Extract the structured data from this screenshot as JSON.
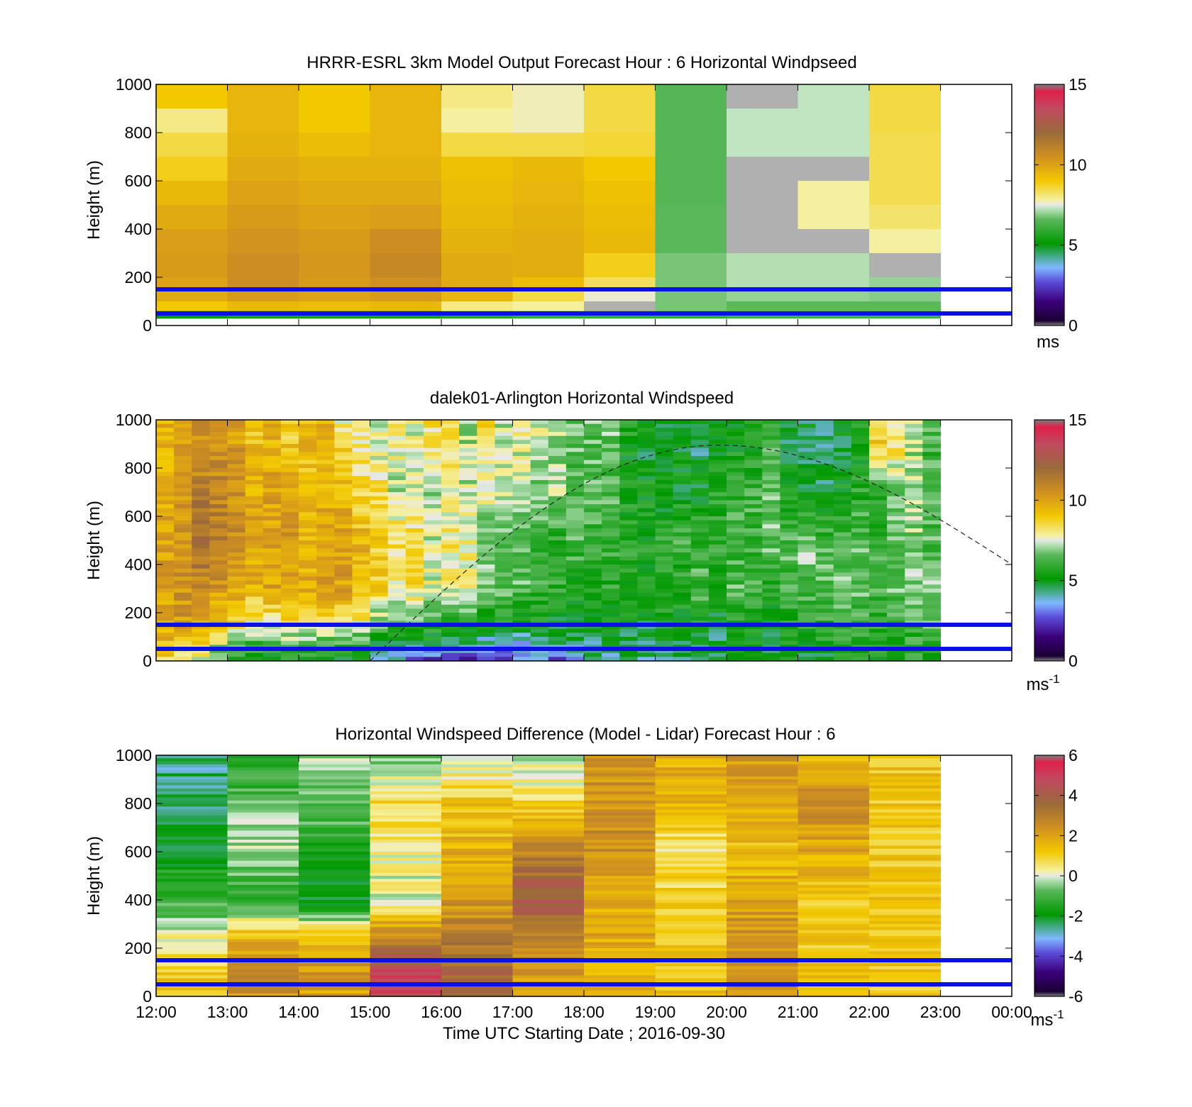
{
  "chart_data": [
    {
      "type": "heatmap",
      "title": "HRRR-ESRL 3km Model Output   Forecast Hour : 6 Horizontal Windpseed",
      "ylabel": "Height (m)",
      "xlabel": "",
      "ylim": [
        0,
        1000
      ],
      "yticks": [
        0,
        200,
        400,
        600,
        800,
        1000
      ],
      "xlim": [
        12,
        24
      ],
      "x_tick_labels": [],
      "colorbar": {
        "range": [
          0,
          15
        ],
        "ticks": [
          0,
          5,
          10,
          15
        ],
        "tick_labels": [
          "0",
          "5",
          "10",
          "15"
        ],
        "unit_label": "ms",
        "unit_superscript": "",
        "stops": [
          [
            "#7f7f7f",
            0.0
          ],
          [
            "#1a0033",
            0.02
          ],
          [
            "#3a007a",
            0.1
          ],
          [
            "#5b4bd8",
            0.18
          ],
          [
            "#7fb8ff",
            0.24
          ],
          [
            "#009900",
            0.34
          ],
          [
            "#5ab85a",
            0.44
          ],
          [
            "#c8e8c8",
            0.49
          ],
          [
            "#e8e8e8",
            0.5
          ],
          [
            "#f5f0a0",
            0.52
          ],
          [
            "#f2c800",
            0.6
          ],
          [
            "#d09020",
            0.7
          ],
          [
            "#9a6a3a",
            0.8
          ],
          [
            "#c04a60",
            0.9
          ],
          [
            "#e0204a",
            0.97
          ],
          [
            "#7f7f7f",
            1.0
          ]
        ]
      },
      "blue_lines_m": [
        150,
        50
      ],
      "layers": [
        {
          "top": 1000,
          "values": [
            9.0,
            9.5,
            9.0,
            9.5,
            8.0,
            7.7,
            8.5,
            6.5,
            "nan",
            7.3,
            8.5
          ]
        },
        {
          "top": 900,
          "values": [
            8.0,
            9.5,
            9.0,
            9.5,
            7.8,
            7.7,
            8.5,
            6.5,
            7.3,
            7.3,
            8.5
          ]
        },
        {
          "top": 800,
          "values": [
            8.5,
            9.6,
            9.3,
            9.5,
            8.5,
            8.5,
            8.6,
            6.5,
            7.3,
            7.3,
            8.4
          ]
        },
        {
          "top": 700,
          "values": [
            8.8,
            9.8,
            9.6,
            9.6,
            9.2,
            9.4,
            9.0,
            6.5,
            "nan",
            "nan",
            8.4
          ]
        },
        {
          "top": 600,
          "values": [
            9.4,
            10.0,
            9.8,
            9.8,
            9.3,
            9.5,
            9.2,
            6.5,
            "nan",
            7.8,
            8.4
          ]
        },
        {
          "top": 500,
          "values": [
            9.8,
            10.2,
            10.0,
            10.1,
            9.4,
            9.6,
            9.3,
            6.6,
            "nan",
            7.8,
            8.2
          ]
        },
        {
          "top": 400,
          "values": [
            10.1,
            10.4,
            10.2,
            10.6,
            9.6,
            9.7,
            9.4,
            6.6,
            "nan",
            "nan",
            7.8
          ]
        },
        {
          "top": 300,
          "values": [
            10.2,
            10.6,
            10.3,
            10.8,
            9.8,
            9.7,
            8.8,
            6.8,
            7.2,
            7.2,
            "nan"
          ]
        },
        {
          "top": 200,
          "values": [
            10.0,
            10.6,
            10.2,
            10.5,
            9.8,
            9.3,
            8.3,
            6.8,
            7.2,
            7.2,
            7.0
          ]
        },
        {
          "top": 150,
          "values": [
            9.8,
            10.2,
            10.0,
            10.2,
            9.5,
            8.5,
            7.6,
            6.8,
            7.0,
            7.0,
            6.9
          ]
        },
        {
          "top": 100,
          "values": [
            9.0,
            9.4,
            9.3,
            9.4,
            8.0,
            7.8,
            "nan",
            6.8,
            6.6,
            6.6,
            6.6
          ]
        },
        {
          "top": 60,
          "values": [
            5.0,
            5.5,
            5.5,
            5.5,
            5.8,
            6.0,
            6.0,
            6.0,
            6.2,
            6.2,
            6.2
          ]
        }
      ]
    },
    {
      "type": "heatmap",
      "title": "dalek01-Arlington  Horizontal Windspeed",
      "ylabel": "Height (m)",
      "xlabel": "",
      "ylim": [
        0,
        1000
      ],
      "yticks": [
        0,
        200,
        400,
        600,
        800,
        1000
      ],
      "xlim": [
        12,
        24
      ],
      "x_tick_labels": [],
      "colorbar": {
        "range": [
          0,
          15
        ],
        "ticks": [
          0,
          5,
          10,
          15
        ],
        "tick_labels": [
          "0",
          "5",
          "10",
          "15"
        ],
        "unit_label": "ms",
        "unit_superscript": "-1",
        "stops": [
          [
            "#7f7f7f",
            0.0
          ],
          [
            "#1a0033",
            0.02
          ],
          [
            "#3a007a",
            0.1
          ],
          [
            "#5b4bd8",
            0.18
          ],
          [
            "#7fb8ff",
            0.24
          ],
          [
            "#009900",
            0.34
          ],
          [
            "#5ab85a",
            0.44
          ],
          [
            "#c8e8c8",
            0.49
          ],
          [
            "#e8e8e8",
            0.5
          ],
          [
            "#f5f0a0",
            0.52
          ],
          [
            "#f2c800",
            0.6
          ],
          [
            "#d09020",
            0.7
          ],
          [
            "#9a6a3a",
            0.8
          ],
          [
            "#c04a60",
            0.9
          ],
          [
            "#e0204a",
            0.97
          ],
          [
            "#7f7f7f",
            1.0
          ]
        ]
      },
      "blue_lines_m": [
        150,
        50
      ],
      "profile_columns": 44,
      "profile_column_width_hours": 0.25,
      "profile_last_time": "22:45",
      "profile_top_m": 1000,
      "profile_bottom_m": 0,
      "knots_m": [
        1000,
        900,
        700,
        500,
        300,
        150,
        60,
        0
      ],
      "profiles": [
        [
          9.8,
          9.5,
          9.6,
          10.1,
          10.0,
          9.9,
          9.2,
          8.3
        ],
        [
          10.4,
          10.0,
          10.4,
          10.6,
          10.5,
          10.2,
          8.9,
          8.0
        ],
        [
          10.6,
          10.5,
          11.2,
          11.8,
          10.8,
          9.5,
          8.4,
          7.5
        ],
        [
          10.2,
          10.4,
          10.9,
          11.2,
          10.2,
          9.1,
          7.2,
          6.2
        ],
        [
          10.1,
          10.2,
          10.5,
          10.7,
          10.0,
          8.4,
          6.5,
          5.8
        ],
        [
          8.9,
          9.2,
          9.6,
          10.0,
          9.5,
          7.8,
          6.0,
          5.4
        ],
        [
          9.4,
          9.6,
          9.9,
          10.2,
          9.9,
          7.9,
          5.8,
          5.2
        ],
        [
          8.6,
          9.0,
          10.0,
          10.6,
          9.7,
          8.2,
          6.4,
          5.5
        ],
        [
          9.2,
          9.4,
          9.1,
          9.4,
          9.8,
          7.9,
          6.2,
          5.3
        ],
        [
          9.5,
          9.5,
          9.5,
          10.0,
          10.3,
          8.3,
          5.9,
          5.0
        ],
        [
          8.0,
          8.8,
          9.4,
          9.9,
          10.1,
          8.1,
          6.0,
          5.1
        ],
        [
          7.6,
          7.9,
          8.6,
          9.5,
          9.4,
          7.9,
          5.6,
          4.8
        ],
        [
          7.3,
          7.5,
          8.3,
          8.8,
          8.8,
          6.6,
          4.8,
          4.0
        ],
        [
          7.9,
          7.8,
          7.3,
          8.4,
          8.0,
          6.2,
          4.5,
          3.4
        ],
        [
          7.8,
          7.6,
          7.4,
          8.5,
          8.3,
          6.4,
          4.6,
          2.6
        ],
        [
          8.4,
          8.2,
          7.3,
          7.5,
          7.6,
          6.0,
          4.7,
          2.1
        ],
        [
          8.6,
          8.4,
          7.6,
          8.1,
          7.8,
          5.9,
          4.2,
          1.8
        ],
        [
          7.4,
          7.1,
          7.4,
          8.0,
          7.8,
          5.6,
          4.2,
          2.0
        ],
        [
          8.6,
          8.1,
          7.7,
          6.6,
          6.8,
          5.3,
          3.6,
          1.9
        ],
        [
          7.1,
          7.3,
          7.4,
          6.8,
          6.6,
          5.4,
          3.4,
          2.2
        ],
        [
          7.6,
          7.6,
          7.2,
          6.5,
          6.5,
          4.8,
          3.7,
          2.8
        ],
        [
          7.6,
          7.5,
          6.6,
          6.2,
          6.1,
          5.2,
          4.4,
          3.5
        ],
        [
          7.2,
          7.2,
          7.1,
          5.8,
          6.0,
          4.9,
          3.9,
          2.6
        ],
        [
          6.7,
          6.5,
          6.4,
          6.3,
          5.6,
          5.0,
          4.2,
          3.6
        ],
        [
          6.7,
          6.4,
          6.5,
          5.9,
          5.5,
          5.1,
          4.5,
          4.1
        ],
        [
          7.1,
          6.5,
          6.3,
          6.2,
          5.8,
          5.2,
          4.5,
          4.2
        ],
        [
          6.1,
          5.3,
          5.5,
          5.8,
          5.5,
          5.0,
          4.6,
          4.2
        ],
        [
          5.5,
          4.9,
          5.4,
          5.5,
          5.5,
          4.7,
          4.4,
          4.2
        ],
        [
          5.2,
          4.8,
          5.1,
          5.8,
          5.9,
          5.2,
          4.6,
          4.3
        ],
        [
          5.3,
          5.0,
          5.2,
          6.2,
          5.6,
          5.1,
          4.7,
          4.4
        ],
        [
          5.0,
          4.5,
          5.2,
          5.9,
          6.3,
          5.4,
          4.9,
          4.6
        ],
        [
          5.1,
          4.8,
          5.6,
          5.9,
          5.7,
          5.0,
          4.6,
          4.5
        ],
        [
          5.5,
          5.2,
          6.2,
          6.1,
          6.4,
          5.6,
          5.3,
          5.0
        ],
        [
          5.6,
          5.4,
          6.0,
          6.2,
          6.1,
          5.6,
          5.0,
          4.8
        ],
        [
          5.9,
          6.1,
          6.5,
          6.7,
          5.9,
          5.2,
          4.7,
          4.6
        ],
        [
          5.3,
          4.8,
          5.4,
          6.3,
          6.3,
          5.6,
          5.3,
          5.2
        ],
        [
          4.9,
          4.5,
          5.1,
          6.9,
          6.5,
          5.7,
          5.0,
          4.9
        ],
        [
          4.8,
          4.5,
          4.8,
          6.2,
          6.5,
          5.8,
          5.3,
          5.1
        ],
        [
          5.2,
          4.8,
          5.5,
          6.5,
          6.7,
          6.1,
          5.6,
          5.3
        ],
        [
          5.6,
          5.2,
          5.8,
          6.4,
          6.6,
          6.0,
          5.6,
          5.4
        ],
        [
          8.9,
          8.8,
          5.8,
          6.0,
          6.1,
          5.8,
          5.5,
          5.3
        ],
        [
          7.2,
          8.4,
          6.5,
          6.6,
          6.6,
          6.0,
          5.7,
          5.5
        ],
        [
          7.4,
          7.3,
          7.0,
          6.9,
          7.0,
          6.2,
          5.9,
          5.7
        ],
        [
          6.3,
          6.2,
          6.1,
          6.4,
          6.8,
          6.4,
          6.1,
          5.8
        ]
      ],
      "dashed_curve": {
        "times_h": [
          15.0,
          19.9,
          24.0
        ],
        "heights_m": [
          0,
          895,
          400
        ]
      }
    },
    {
      "type": "heatmap",
      "title": "Horizontal Windspeed Difference (Model - Lidar) Forecast Hour : 6",
      "ylabel": "Height (m)",
      "xlabel": "Time UTC  Starting Date ; 2016-09-30",
      "ylim": [
        0,
        1000
      ],
      "yticks": [
        0,
        200,
        400,
        600,
        800,
        1000
      ],
      "xlim": [
        12,
        24
      ],
      "x_tick_labels": [
        "12:00",
        "13:00",
        "14:00",
        "15:00",
        "16:00",
        "17:00",
        "18:00",
        "19:00",
        "20:00",
        "21:00",
        "22:00",
        "23:00",
        "00:00"
      ],
      "colorbar": {
        "range": [
          -6,
          6
        ],
        "ticks": [
          -6,
          -4,
          -2,
          0,
          2,
          4,
          6
        ],
        "tick_labels": [
          "-6",
          "-4",
          "-2",
          "0",
          "2",
          "4",
          "6"
        ],
        "unit_label": "ms",
        "unit_superscript": "-1",
        "stops": [
          [
            "#7f7f7f",
            0.0
          ],
          [
            "#1a0033",
            0.02
          ],
          [
            "#3a007a",
            0.1
          ],
          [
            "#5b4bd8",
            0.18
          ],
          [
            "#7fb8ff",
            0.24
          ],
          [
            "#009900",
            0.34
          ],
          [
            "#5ab85a",
            0.44
          ],
          [
            "#c8e8c8",
            0.49
          ],
          [
            "#e8e8e8",
            0.5
          ],
          [
            "#f5f0a0",
            0.52
          ],
          [
            "#f2c800",
            0.6
          ],
          [
            "#d09020",
            0.7
          ],
          [
            "#9a6a3a",
            0.8
          ],
          [
            "#c04a60",
            0.9
          ],
          [
            "#e0204a",
            0.97
          ],
          [
            "#7f7f7f",
            1.0
          ]
        ]
      },
      "blue_lines_m": [
        150,
        50
      ],
      "knots_m": [
        1000,
        800,
        600,
        400,
        250,
        150,
        60,
        0
      ],
      "diff_columns": [
        [
          -2.6,
          -2.4,
          -1.8,
          -1.3,
          0.1,
          0.8,
          1.2,
          1.4
        ],
        [
          -1.8,
          -0.6,
          -0.3,
          -1.4,
          1.4,
          2.4,
          2.4,
          2.2
        ],
        [
          -0.4,
          -0.7,
          -1.5,
          -2.2,
          1.1,
          2.2,
          2.2,
          2.0
        ],
        [
          -0.6,
          0.9,
          0.2,
          0.1,
          2.8,
          4.4,
          4.8,
          4.8
        ],
        [
          -0.4,
          1.3,
          1.7,
          2.3,
          2.8,
          3.6,
          3.6,
          3.6
        ],
        [
          -0.3,
          0.8,
          2.8,
          4.2,
          3.0,
          2.6,
          2.0,
          1.8
        ],
        [
          2.2,
          2.4,
          2.5,
          1.8,
          1.8,
          1.7,
          1.8,
          1.8
        ],
        [
          1.8,
          1.6,
          0.4,
          1.1,
          1.3,
          1.2,
          1.2,
          1.3
        ],
        [
          2.3,
          2.0,
          1.4,
          2.0,
          2.4,
          2.4,
          2.4,
          2.4
        ],
        [
          1.4,
          2.6,
          1.8,
          1.3,
          1.2,
          1.3,
          1.3,
          1.3
        ],
        [
          1.3,
          1.2,
          1.2,
          1.2,
          1.2,
          1.2,
          1.2,
          1.2
        ]
      ]
    }
  ]
}
